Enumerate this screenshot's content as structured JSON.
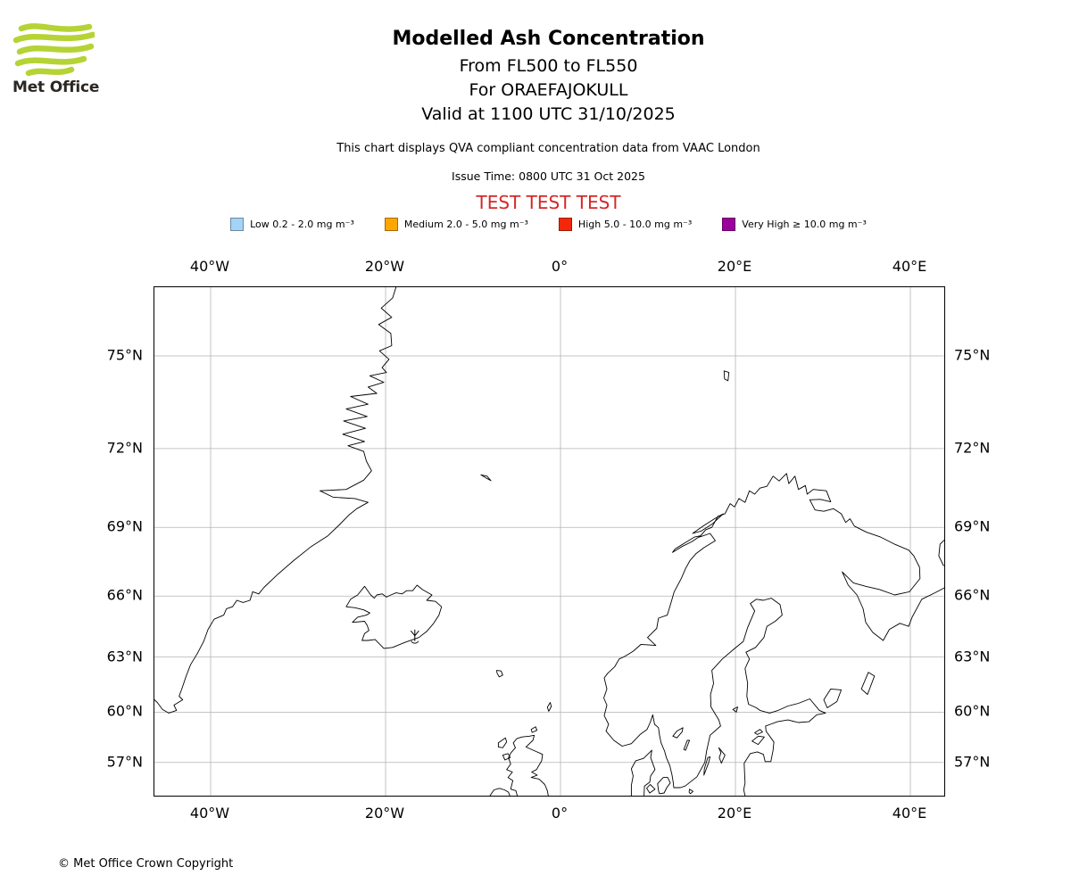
{
  "logo": {
    "text": "Met Office",
    "brand_green": "#b5d334"
  },
  "header": {
    "title": "Modelled Ash Concentration",
    "subtitle1": "From FL500 to FL550",
    "subtitle2": "For ORAEFAJOKULL",
    "subtitle3": "Valid at 1100 UTC 31/10/2025",
    "note": "This chart displays QVA compliant concentration data from VAAC London",
    "issue_time": "Issue Time: 0800 UTC 31 Oct 2025",
    "test_banner": "TEST TEST TEST",
    "test_banner_color": "#d62728"
  },
  "legend": {
    "items": [
      {
        "key": "low",
        "label": "Low 0.2 - 2.0 mg m⁻³",
        "color": "#a3d3f5"
      },
      {
        "key": "medium",
        "label": "Medium 2.0 - 5.0 mg m⁻³",
        "color": "#ffa600"
      },
      {
        "key": "high",
        "label": "High 5.0 - 10.0 mg m⁻³",
        "color": "#f5270b"
      },
      {
        "key": "very-high",
        "label": "Very High ≥ 10.0 mg m⁻³",
        "color": "#9c009c"
      }
    ]
  },
  "map": {
    "lon_ticks": [
      {
        "label": "40°W",
        "lon": -40
      },
      {
        "label": "20°W",
        "lon": -20
      },
      {
        "label": "0°",
        "lon": 0
      },
      {
        "label": "20°E",
        "lon": 20
      },
      {
        "label": "40°E",
        "lon": 40
      }
    ],
    "lat_ticks": [
      {
        "label": "75°N",
        "lat": 75
      },
      {
        "label": "72°N",
        "lat": 72
      },
      {
        "label": "69°N",
        "lat": 69
      },
      {
        "label": "66°N",
        "lat": 66
      },
      {
        "label": "63°N",
        "lat": 63
      },
      {
        "label": "60°N",
        "lat": 60
      },
      {
        "label": "57°N",
        "lat": 57
      }
    ],
    "volcano": {
      "name": "ORAEFAJOKULL",
      "lat": 64.0,
      "lon": -16.65
    }
  },
  "footer": {
    "copyright": "© Met Office Crown Copyright"
  }
}
